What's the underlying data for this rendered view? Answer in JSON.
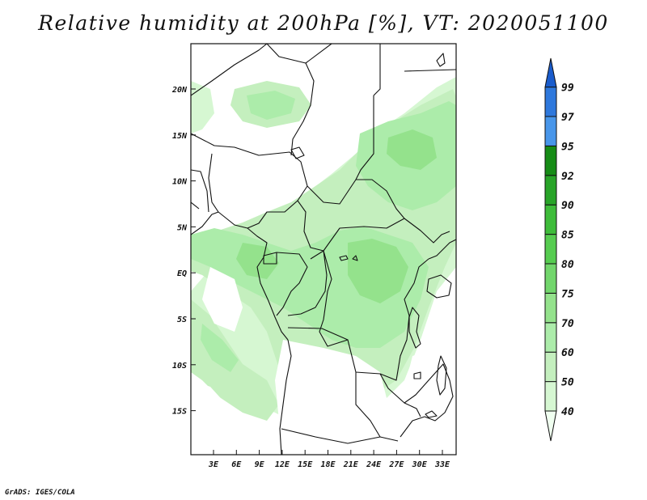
{
  "title": "Relative humidity at 200hPa [%], VT: 2020051100",
  "footer": "GrADS: IGES/COLA",
  "lat_ticks": [
    "20N",
    "15N",
    "10N",
    "5N",
    "EQ",
    "5S",
    "10S",
    "15S"
  ],
  "lon_ticks": [
    "3E",
    "6E",
    "9E",
    "12E",
    "15E",
    "18E",
    "21E",
    "24E",
    "27E",
    "30E",
    "33E"
  ],
  "colorbar": {
    "labels": [
      "40",
      "50",
      "60",
      "70",
      "75",
      "80",
      "85",
      "90",
      "92",
      "95",
      "97",
      "99"
    ],
    "colors": [
      "#f0fff0",
      "#d6f7d2",
      "#c4efbe",
      "#acecaa",
      "#94e28c",
      "#72d66c",
      "#56cc50",
      "#3ebc3a",
      "#28a428",
      "#168c16",
      "#4896ea",
      "#2e78dc",
      "#1a5ccc"
    ]
  },
  "chart_data": {
    "type": "heatmap",
    "title": "Relative humidity at 200hPa [%], VT: 2020051100",
    "variable": "relative humidity",
    "level": "200hPa",
    "units": "%",
    "valid_time": "2020051100",
    "lon_range": [
      0,
      35
    ],
    "lat_range": [
      -20,
      24
    ],
    "contour_levels": [
      40,
      50,
      60,
      70,
      75,
      80,
      85,
      90,
      92,
      95,
      97,
      99
    ]
  }
}
